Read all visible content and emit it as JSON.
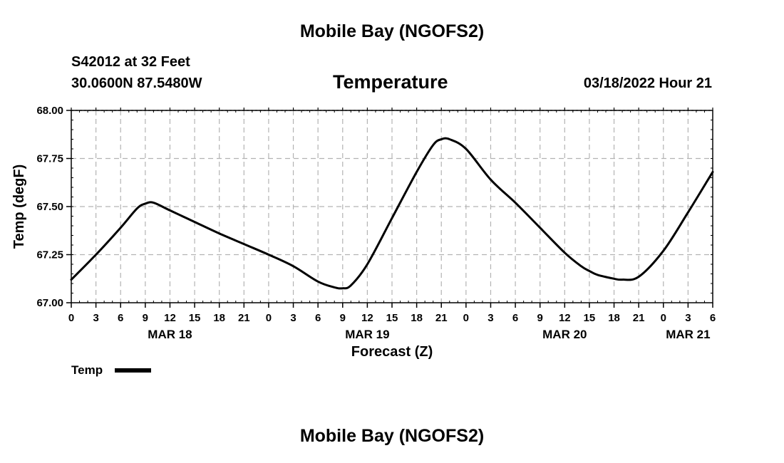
{
  "header": {
    "title": "Mobile Bay (NGOFS2)",
    "station": "S42012 at 32 Feet",
    "coords": "30.0600N  87.5480W",
    "datetime": "03/18/2022 Hour 21"
  },
  "footer": {
    "title": "Mobile Bay (NGOFS2)"
  },
  "chart_data": {
    "type": "line",
    "title": "Temperature",
    "xlabel": "Forecast (Z)",
    "ylabel": "Temp (degF)",
    "ylim": [
      67.0,
      68.0
    ],
    "yticks": [
      "67.00",
      "67.25",
      "67.50",
      "67.75",
      "68.00"
    ],
    "xlim": [
      0,
      78
    ],
    "xtick_labels": [
      "0",
      "3",
      "6",
      "9",
      "12",
      "15",
      "18",
      "21",
      "0",
      "3",
      "6",
      "9",
      "12",
      "15",
      "18",
      "21",
      "0",
      "3",
      "6",
      "9",
      "12",
      "15",
      "18",
      "21",
      "0",
      "3",
      "6"
    ],
    "day_labels": [
      {
        "label": "MAR 18",
        "x": 12
      },
      {
        "label": "MAR 19",
        "x": 36
      },
      {
        "label": "MAR 20",
        "x": 60
      },
      {
        "label": "MAR 21",
        "x": 75
      }
    ],
    "grid": true,
    "legend": "bottom-left",
    "series": [
      {
        "name": "Temp",
        "x": [
          0,
          3,
          6,
          8,
          9,
          10,
          12,
          15,
          18,
          21,
          24,
          27,
          30,
          32,
          33,
          34,
          36,
          39,
          42,
          44,
          45,
          46,
          48,
          51,
          54,
          57,
          60,
          62,
          63,
          64,
          66,
          67,
          69,
          72,
          75,
          78
        ],
        "values": [
          67.12,
          67.25,
          67.39,
          67.49,
          67.515,
          67.52,
          67.48,
          67.42,
          67.36,
          67.305,
          67.25,
          67.19,
          67.11,
          67.08,
          67.075,
          67.09,
          67.2,
          67.44,
          67.68,
          67.82,
          67.85,
          67.85,
          67.8,
          67.64,
          67.52,
          67.39,
          67.26,
          67.19,
          67.165,
          67.145,
          67.125,
          67.12,
          67.135,
          67.27,
          67.47,
          67.68
        ]
      }
    ]
  }
}
